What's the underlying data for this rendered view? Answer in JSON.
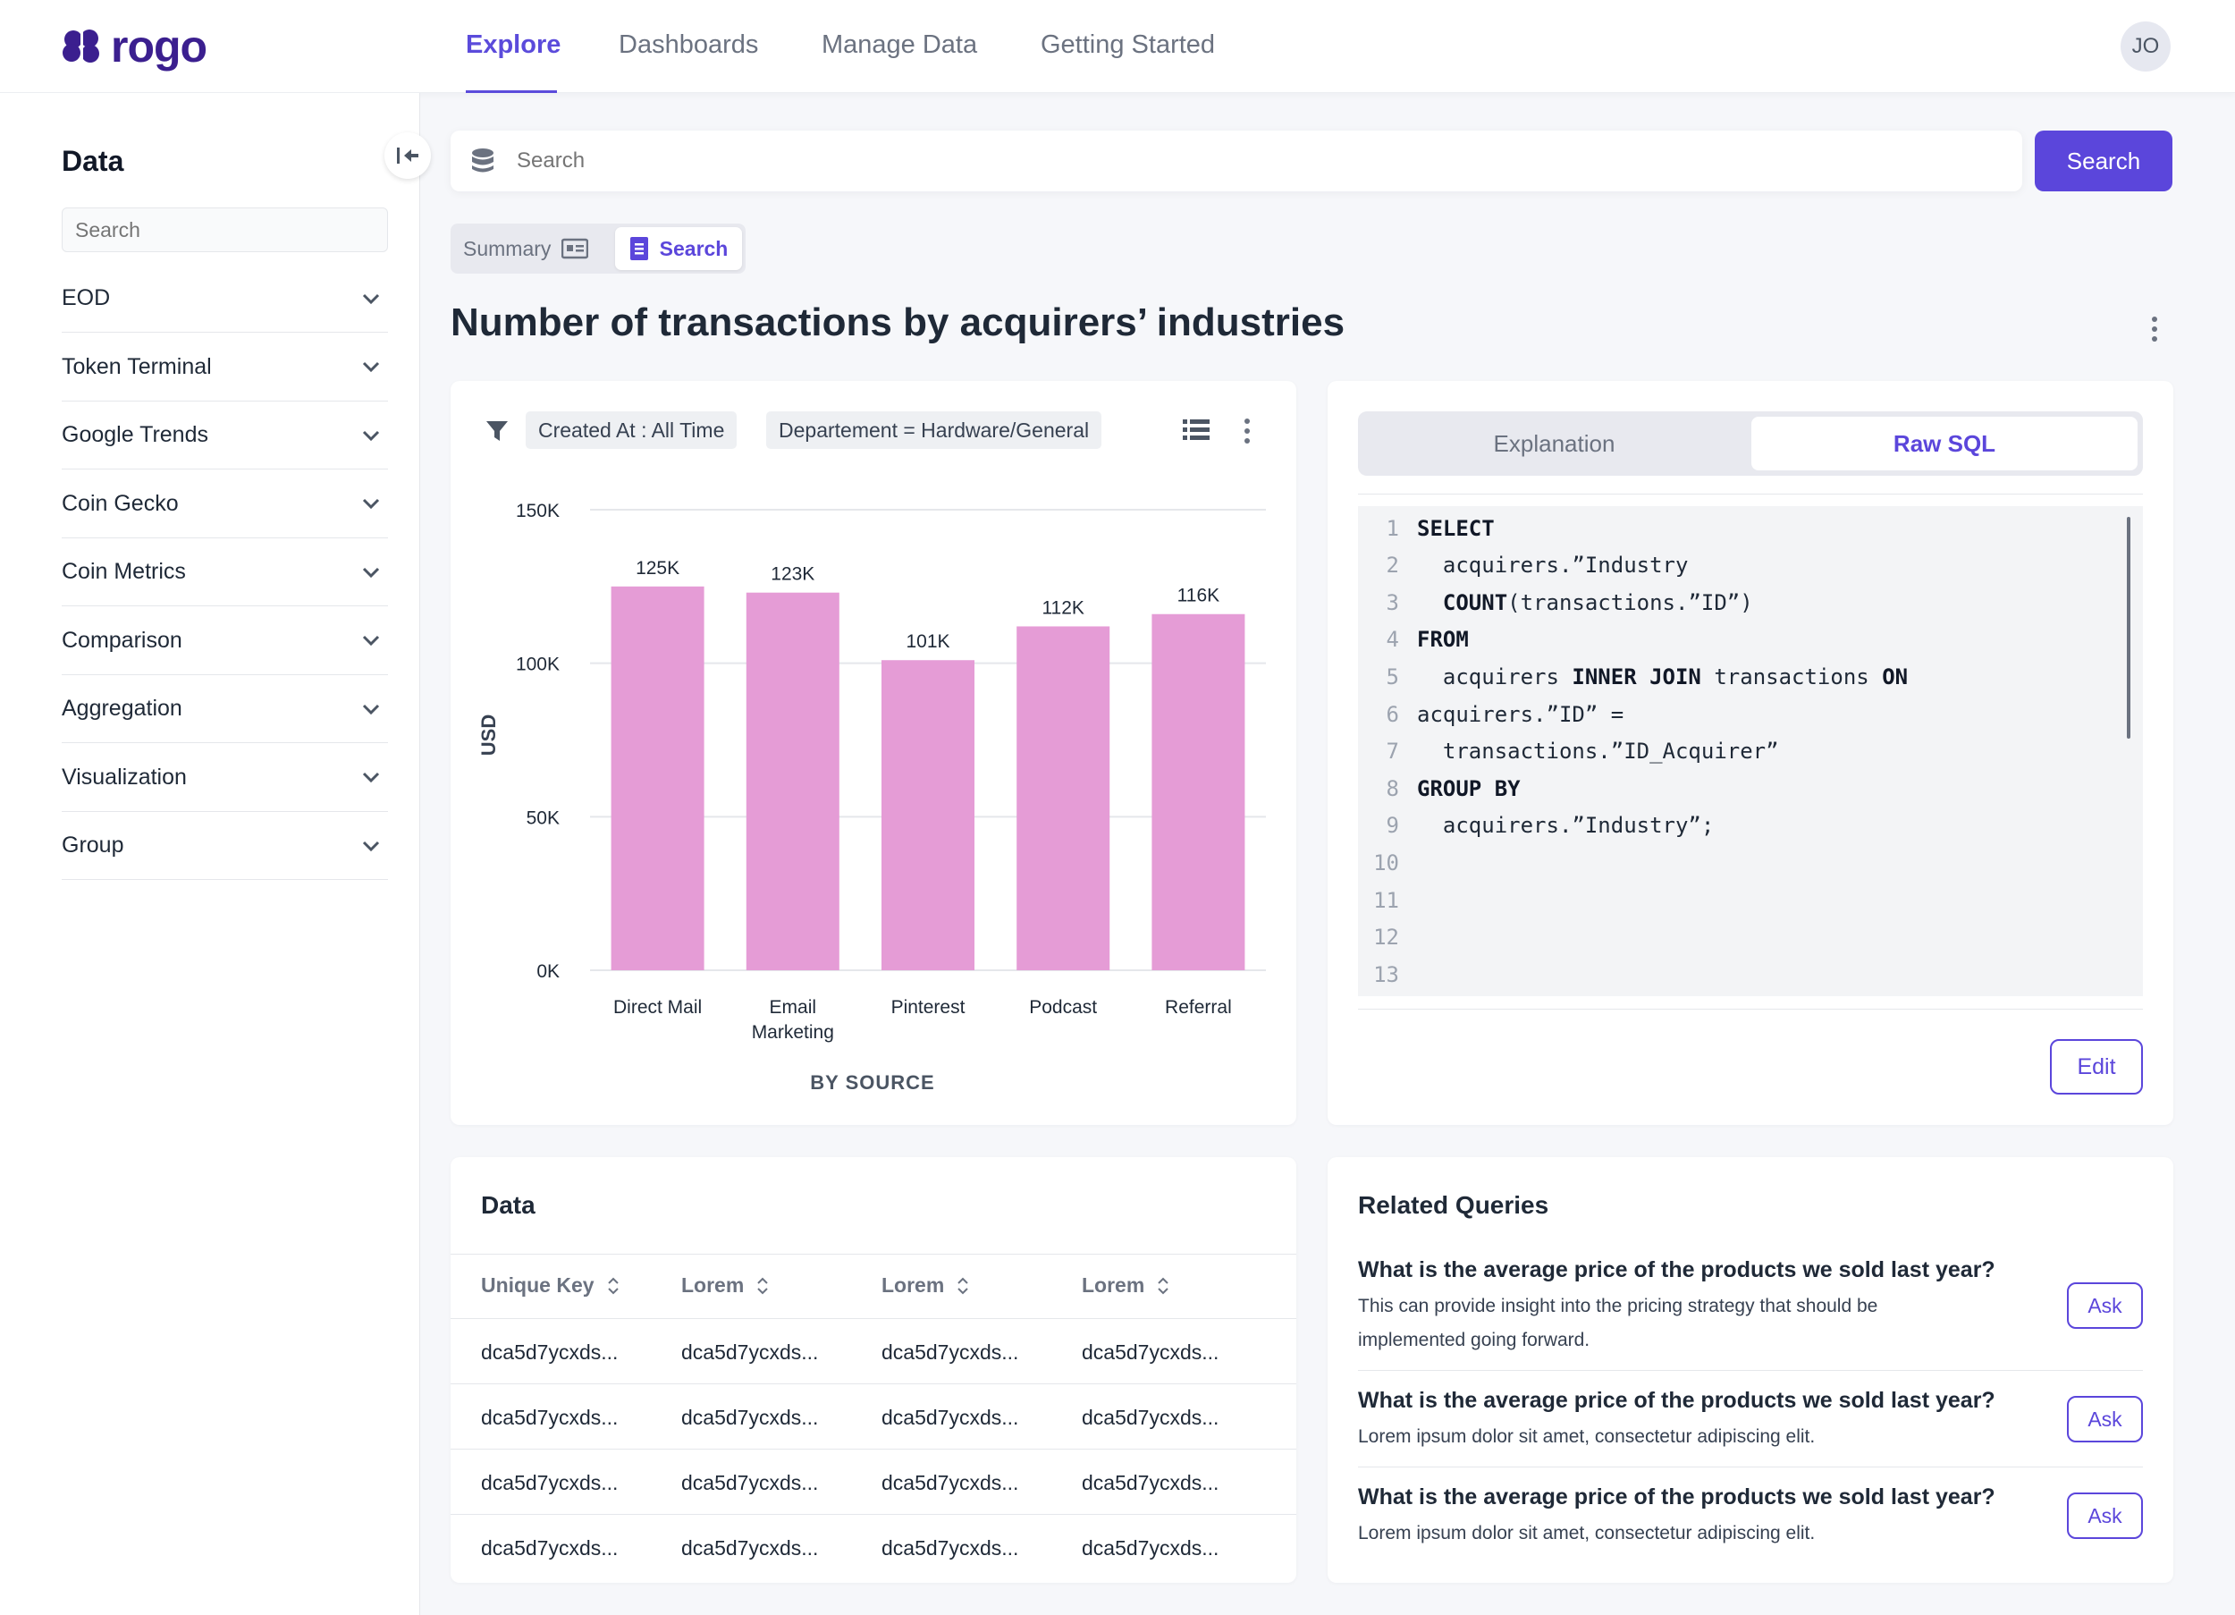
{
  "app": {
    "logo_text": "rogo",
    "brand_color": "#5b46db",
    "avatar_initials": "JO"
  },
  "nav": {
    "tabs": [
      "Explore",
      "Dashboards",
      "Manage Data",
      "Getting Started"
    ],
    "active": "Explore"
  },
  "sidebar": {
    "title": "Data",
    "search_placeholder": "Search",
    "items": [
      "EOD",
      "Token Terminal",
      "Google Trends",
      "Coin Gecko",
      "Coin Metrics",
      "Comparison",
      "Aggregation",
      "Visualization",
      "Group"
    ]
  },
  "search": {
    "placeholder": "Search",
    "button_label": "Search"
  },
  "mode_toggle": {
    "summary_label": "Summary",
    "search_label": "Search",
    "active": "Search"
  },
  "page_title": "Number of transactions by acquirers’ industries",
  "filters": {
    "chips": [
      "Created At  : All Time",
      "Departement = Hardware/General"
    ]
  },
  "chart_data": {
    "type": "bar",
    "categories": [
      "Direct Mail",
      "Email Marketing",
      "Pinterest",
      "Podcast",
      "Referral"
    ],
    "category_lines": [
      [
        "Direct Mail"
      ],
      [
        "Email",
        "Marketing"
      ],
      [
        "Pinterest"
      ],
      [
        "Podcast"
      ],
      [
        "Referral"
      ]
    ],
    "values": [
      125000,
      123000,
      101000,
      112000,
      116000
    ],
    "data_labels": [
      "125K",
      "123K",
      "101K",
      "112K",
      "116K"
    ],
    "yticks": [
      0,
      50000,
      100000,
      150000
    ],
    "ytick_labels": [
      "0K",
      "50K",
      "100K",
      "150K"
    ],
    "ylim": [
      0,
      150000
    ],
    "ylabel": "USD",
    "xlabel": "BY SOURCE",
    "bar_color": "#e59cd6",
    "grid": true
  },
  "sql": {
    "tabs": [
      "Explanation",
      "Raw SQL"
    ],
    "active_tab": "Raw SQL",
    "lines": [
      [
        {
          "t": "SELECT",
          "kw": true
        }
      ],
      [
        {
          "t": "  acquirers.”Industry"
        }
      ],
      [
        {
          "t": "  "
        },
        {
          "t": "COUNT",
          "kw": true
        },
        {
          "t": "(transactions.”ID”)"
        }
      ],
      [
        {
          "t": "FROM",
          "kw": true
        }
      ],
      [
        {
          "t": "  acquirers "
        },
        {
          "t": "INNER JOIN",
          "kw": true
        },
        {
          "t": " transactions "
        },
        {
          "t": "ON",
          "kw": true
        }
      ],
      [
        {
          "t": "acquirers.”ID” ="
        }
      ],
      [
        {
          "t": "  transactions.”ID_Acquirer”"
        }
      ],
      [
        {
          "t": "GROUP BY",
          "kw": true
        }
      ],
      [
        {
          "t": "  acquirers.”Industry”;"
        }
      ],
      [],
      [],
      [],
      []
    ],
    "edit_label": "Edit"
  },
  "data_table": {
    "title": "Data",
    "columns": [
      "Unique Key",
      "Lorem",
      "Lorem",
      "Lorem"
    ],
    "rows": [
      [
        "dca5d7ycxds...",
        "dca5d7ycxds...",
        "dca5d7ycxds...",
        "dca5d7ycxds..."
      ],
      [
        "dca5d7ycxds...",
        "dca5d7ycxds...",
        "dca5d7ycxds...",
        "dca5d7ycxds..."
      ],
      [
        "dca5d7ycxds...",
        "dca5d7ycxds...",
        "dca5d7ycxds...",
        "dca5d7ycxds..."
      ],
      [
        "dca5d7ycxds...",
        "dca5d7ycxds...",
        "dca5d7ycxds...",
        "dca5d7ycxds..."
      ]
    ]
  },
  "related_queries": {
    "title": "Related Queries",
    "ask_label": "Ask",
    "items": [
      {
        "question": "What is the average price of the products we sold last year?",
        "description": "This can provide insight into the pricing strategy that should be implemented going forward."
      },
      {
        "question": "What is the average price of the products we sold last year?",
        "description": "Lorem ipsum dolor sit amet, consectetur adipiscing elit."
      },
      {
        "question": "What is the average price of the products we sold last year?",
        "description": "Lorem ipsum dolor sit amet, consectetur adipiscing elit."
      }
    ]
  }
}
